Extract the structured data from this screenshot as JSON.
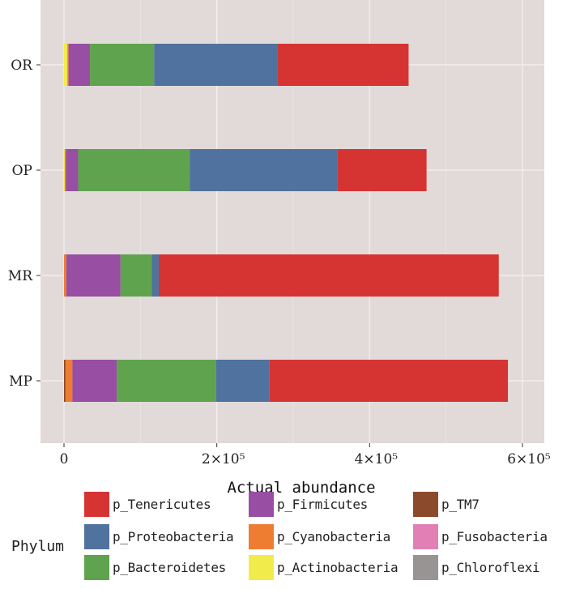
{
  "chart_data": {
    "type": "bar",
    "orientation": "horizontal",
    "stacked": true,
    "categories": [
      "OR",
      "OP",
      "MR",
      "MP"
    ],
    "xlabel": "Actual abundance",
    "xlim": [
      0,
      600000
    ],
    "x_ticks": [
      0,
      200000,
      400000,
      600000
    ],
    "x_tick_labels": [
      "0",
      "2×10⁵",
      "4×10⁵",
      "6×10⁵"
    ],
    "grid": true,
    "legend_title": "Phylum",
    "legend_position": "bottom",
    "series": [
      {
        "name": "p_TM7",
        "color": "#8B4A2B",
        "values": [
          0,
          0,
          0,
          2000
        ]
      },
      {
        "name": "p_Actinobacteria",
        "color": "#F1EB4C",
        "values": [
          4500,
          1000,
          0,
          0
        ]
      },
      {
        "name": "p_Cyanobacteria",
        "color": "#EE7D32",
        "values": [
          1500,
          1500,
          3000,
          9000
        ]
      },
      {
        "name": "p_Firmicutes",
        "color": "#984EA3",
        "values": [
          28000,
          16000,
          71000,
          58000
        ]
      },
      {
        "name": "p_Bacteroidetes",
        "color": "#5FA34E",
        "values": [
          84000,
          146000,
          41000,
          130000
        ]
      },
      {
        "name": "p_Proteobacteria",
        "color": "#50729E",
        "values": [
          161000,
          193000,
          9000,
          70000
        ]
      },
      {
        "name": "p_Tenericutes",
        "color": "#D53432",
        "values": [
          172000,
          117000,
          445000,
          312000
        ]
      }
    ]
  },
  "legend": {
    "title": "Phylum",
    "items": [
      {
        "label": "p_Tenericutes",
        "color": "#D53432"
      },
      {
        "label": "p_Proteobacteria",
        "color": "#50729E"
      },
      {
        "label": "p_Bacteroidetes",
        "color": "#5FA34E"
      },
      {
        "label": "p_Firmicutes",
        "color": "#984EA3"
      },
      {
        "label": "p_Cyanobacteria",
        "color": "#EE7D32"
      },
      {
        "label": "p_Actinobacteria",
        "color": "#F1EB4C"
      },
      {
        "label": "p_TM7",
        "color": "#8B4A2B"
      },
      {
        "label": "p_Fusobacteria",
        "color": "#E27FB5"
      },
      {
        "label": "p_Chloroflexi",
        "color": "#999494"
      }
    ]
  }
}
